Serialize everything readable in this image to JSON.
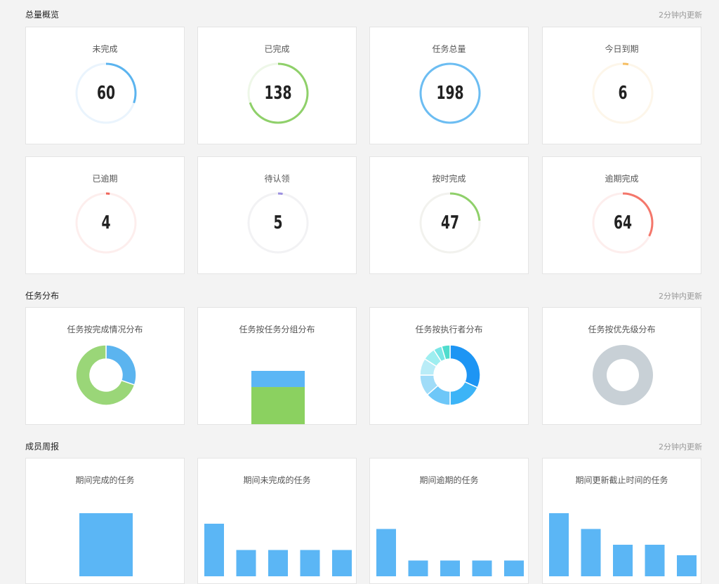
{
  "sections": {
    "overview": {
      "title": "总量概览",
      "update": "2分钟内更新"
    },
    "distribution": {
      "title": "任务分布",
      "update": "2分钟内更新"
    },
    "weekly": {
      "title": "成员周报",
      "update": "2分钟内更新"
    }
  },
  "overview_cards": [
    {
      "label": "未完成",
      "value": "60",
      "fraction": 0.303,
      "color": "#5bb4ef",
      "track": "#eaf4fd"
    },
    {
      "label": "已完成",
      "value": "138",
      "fraction": 0.697,
      "color": "#8fd06a",
      "track": "#eef7e8"
    },
    {
      "label": "任务总量",
      "value": "198",
      "fraction": 1.0,
      "color": "#6cbdf2",
      "track": "#eaf4fd"
    },
    {
      "label": "今日到期",
      "value": "6",
      "fraction": 0.03,
      "color": "#f6be62",
      "track": "#fdf6ea"
    },
    {
      "label": "已逾期",
      "value": "4",
      "fraction": 0.02,
      "color": "#f0655a",
      "track": "#fdeeed"
    },
    {
      "label": "待认领",
      "value": "5",
      "fraction": 0.025,
      "color": "#9b8fe0",
      "track": "#f2f2f4"
    },
    {
      "label": "按时完成",
      "value": "47",
      "fraction": 0.237,
      "color": "#8fd06a",
      "track": "#f2f2ee"
    },
    {
      "label": "逾期完成",
      "value": "64",
      "fraction": 0.323,
      "color": "#f4776b",
      "track": "#fdeeed"
    }
  ],
  "distribution_cards": [
    {
      "label": "任务按完成情况分布"
    },
    {
      "label": "任务按任务分组分布"
    },
    {
      "label": "任务按执行者分布"
    },
    {
      "label": "任务按优先级分布"
    }
  ],
  "weekly_cards": [
    {
      "label": "期间完成的任务"
    },
    {
      "label": "期间未完成的任务"
    },
    {
      "label": "期间逾期的任务"
    },
    {
      "label": "期间更新截止时间的任务"
    }
  ],
  "chart_data": [
    {
      "type": "pie",
      "title": "任务按完成情况分布",
      "slices": [
        {
          "value": 60,
          "color": "#5bb4ef"
        },
        {
          "value": 138,
          "color": "#9ad678"
        }
      ]
    },
    {
      "type": "bar",
      "title": "任务按任务分组分布",
      "series": [
        {
          "values": [
            138
          ],
          "color": "#8bd160"
        },
        {
          "values": [
            60
          ],
          "color": "#5bb6f5"
        }
      ]
    },
    {
      "type": "pie",
      "title": "任务按执行者分布",
      "slices": [
        {
          "value": 28,
          "color": "#1d95f4"
        },
        {
          "value": 16,
          "color": "#3cb4f7"
        },
        {
          "value": 12,
          "color": "#6ec7f8"
        },
        {
          "value": 10,
          "color": "#a0dcf8"
        },
        {
          "value": 8,
          "color": "#b9ecf7"
        },
        {
          "value": 6,
          "color": "#9eeef0"
        },
        {
          "value": 4,
          "color": "#7ae6e6"
        },
        {
          "value": 4,
          "color": "#4fdccd"
        }
      ]
    },
    {
      "type": "pie",
      "title": "任务按优先级分布",
      "slices": [
        {
          "value": 198,
          "color": "#c8d0d6"
        }
      ]
    },
    {
      "type": "bar",
      "title": "期间完成的任务",
      "values": [
        12
      ]
    },
    {
      "type": "bar",
      "title": "期间未完成的任务",
      "values": [
        10,
        5,
        5,
        5,
        5
      ]
    },
    {
      "type": "bar",
      "title": "期间逾期的任务",
      "values": [
        9,
        3,
        3,
        3,
        3
      ]
    },
    {
      "type": "bar",
      "title": "期间更新截止时间的任务",
      "values": [
        12,
        9,
        6,
        6,
        4
      ]
    }
  ]
}
